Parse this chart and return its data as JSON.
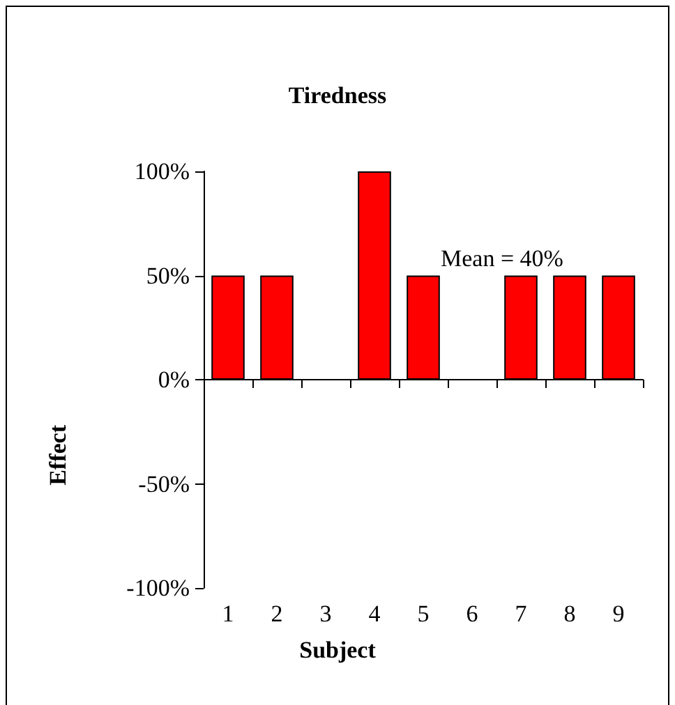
{
  "chart_data": {
    "type": "bar",
    "title": "Tiredness",
    "xlabel": "Subject",
    "ylabel": "Effect",
    "categories": [
      "1",
      "2",
      "3",
      "4",
      "5",
      "6",
      "7",
      "8",
      "9"
    ],
    "values": [
      50,
      50,
      0,
      100,
      50,
      0,
      50,
      50,
      50
    ],
    "color": "#ff0000",
    "ylim": [
      -100,
      100
    ],
    "yticks": [
      {
        "value": -100,
        "label": "-100%"
      },
      {
        "value": -50,
        "label": "-50%"
      },
      {
        "value": 0,
        "label": "0%"
      },
      {
        "value": 50,
        "label": "50%"
      },
      {
        "value": 100,
        "label": "100%"
      }
    ],
    "annotations": [
      "Mean = 40%"
    ]
  }
}
